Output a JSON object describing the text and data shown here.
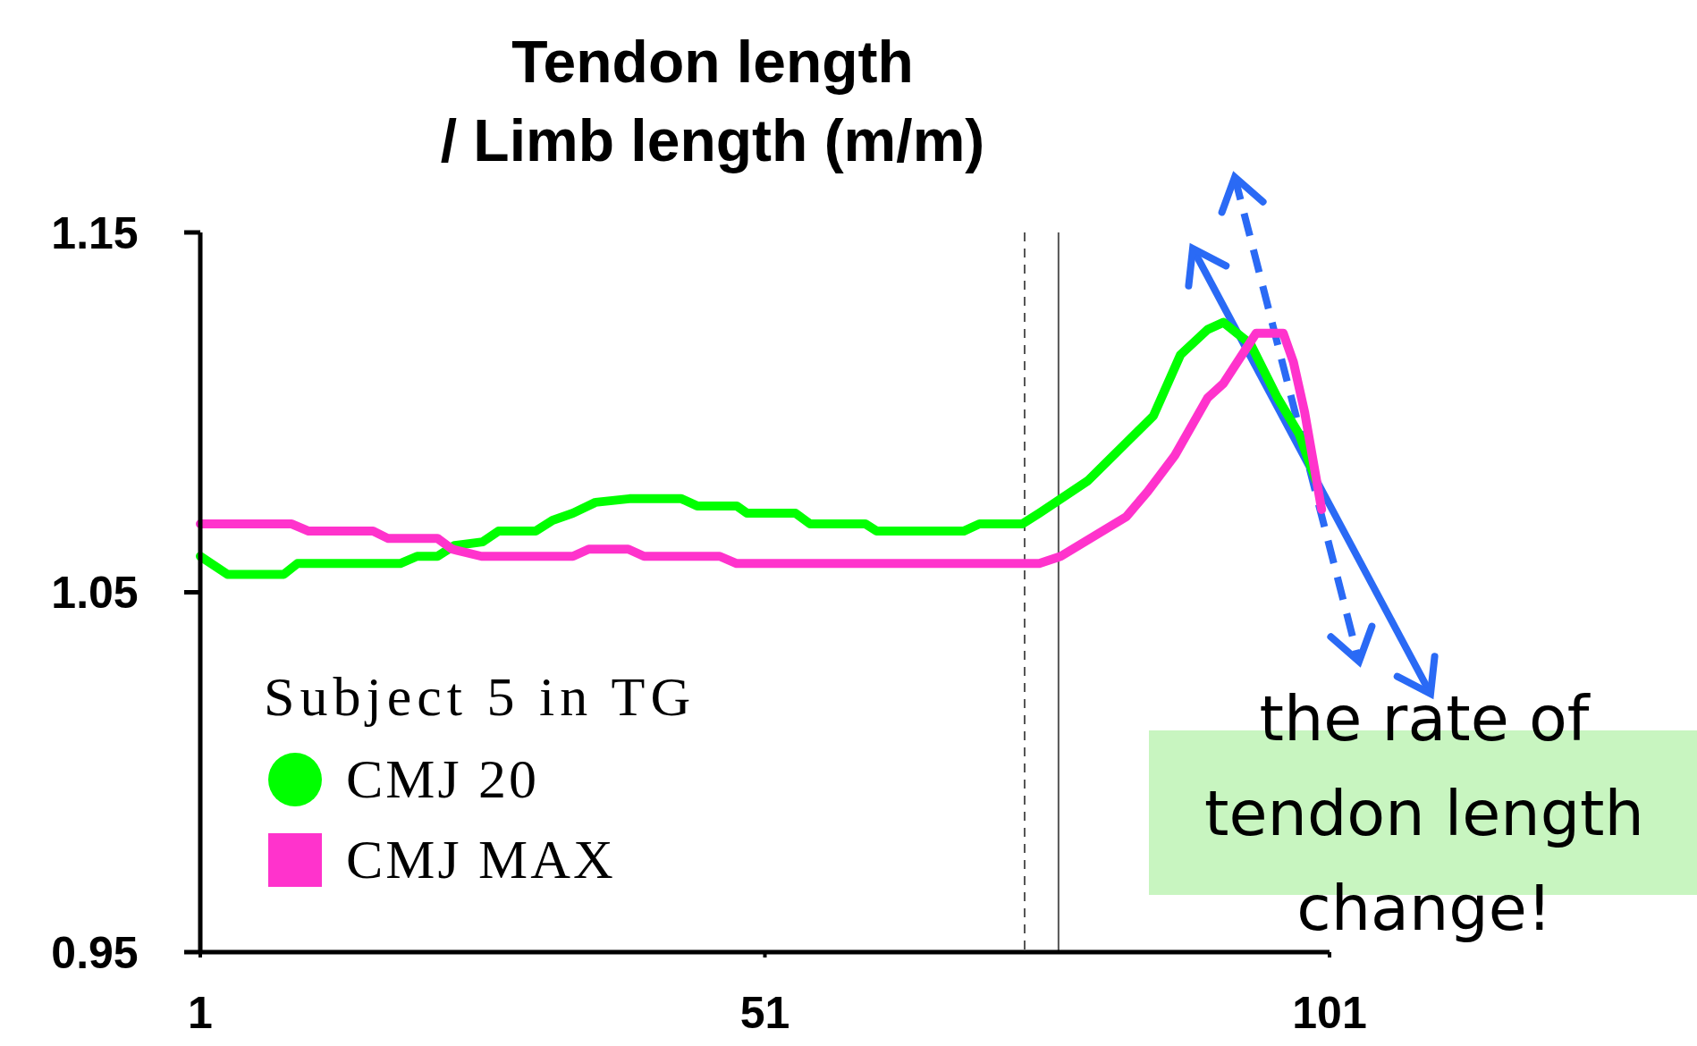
{
  "chart_data": {
    "type": "line",
    "title": "Tendon length\n/ Limb length (m/m)",
    "legend_title": "Subject 5 in TG",
    "legend": "bottom left",
    "grid": false,
    "xlim": [
      1,
      101
    ],
    "xticks": [
      1,
      51,
      101
    ],
    "ylim": [
      0.95,
      1.15
    ],
    "yticks": [
      0.95,
      1.05,
      1.15
    ],
    "series": [
      {
        "name": "CMJ 20",
        "color": "#00ff00",
        "x": [
          1,
          3.4,
          8.4,
          9.6,
          18.7,
          20.2,
          22,
          23.5,
          26,
          27.4,
          30.7,
          32.2,
          34,
          36,
          39,
          43.6,
          45,
          48.5,
          49.4,
          53.7,
          55,
          59.9,
          60.9,
          68.6,
          70,
          73.8,
          75.3,
          79.6,
          82.5,
          85.4,
          87.8,
          90.2,
          91.6,
          94,
          96.4,
          98.3,
          99.8
        ],
        "values": [
          1.06,
          1.055,
          1.055,
          1.058,
          1.058,
          1.06,
          1.06,
          1.063,
          1.064,
          1.067,
          1.067,
          1.07,
          1.072,
          1.075,
          1.076,
          1.076,
          1.074,
          1.074,
          1.072,
          1.072,
          1.069,
          1.069,
          1.067,
          1.067,
          1.069,
          1.069,
          1.072,
          1.081,
          1.09,
          1.099,
          1.116,
          1.123,
          1.125,
          1.119,
          1.104,
          1.094,
          1.081
        ]
      },
      {
        "name": "CMJ MAX",
        "color": "#ff33cc",
        "x": [
          1,
          9.1,
          10.6,
          16.3,
          17.6,
          22,
          23.3,
          25.9,
          34,
          35.4,
          38.9,
          40.3,
          47,
          48.5,
          75.3,
          77.2,
          83,
          84.9,
          87.3,
          90.2,
          91.6,
          94.5,
          96.9,
          97.8,
          98.8,
          99.8,
          100.3
        ],
        "values": [
          1.069,
          1.069,
          1.067,
          1.067,
          1.065,
          1.065,
          1.062,
          1.06,
          1.06,
          1.062,
          1.062,
          1.06,
          1.06,
          1.058,
          1.058,
          1.06,
          1.071,
          1.078,
          1.088,
          1.104,
          1.108,
          1.122,
          1.122,
          1.114,
          1.1,
          1.082,
          1.073
        ]
      }
    ],
    "ref_lines": [
      {
        "axis": "x",
        "value": 74,
        "color": "#555555",
        "line_style": "dashed"
      },
      {
        "axis": "x",
        "value": 77,
        "color": "#555555",
        "line_style": "solid"
      }
    ],
    "annotations": [
      "the rate of\ntendon length\nchange!"
    ]
  }
}
